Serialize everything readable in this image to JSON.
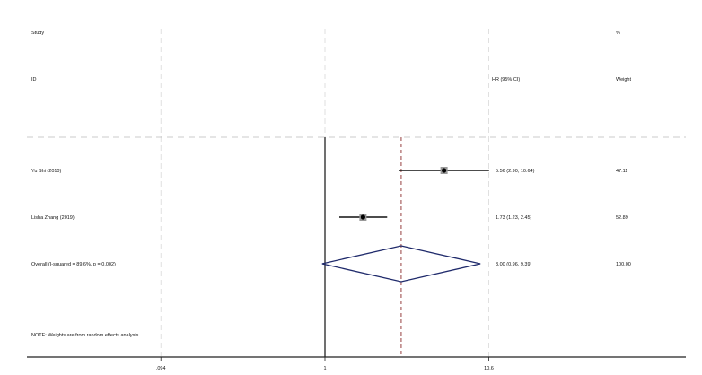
{
  "chart_data": {
    "type": "forest",
    "scale": "log",
    "headers": {
      "study": "Study",
      "id": "ID",
      "effect": "HR (95% CI)",
      "pct": "%",
      "weight": "Weight"
    },
    "studies": [
      {
        "label": "Yu Shi (2010)",
        "hr": 5.56,
        "lo": 2.9,
        "hi": 10.64,
        "text": "5.56 (2.90, 10.64)",
        "weight": "47.11"
      },
      {
        "label": "Lisha Zhang (2019)",
        "hr": 1.73,
        "lo": 1.23,
        "hi": 2.45,
        "text": "1.73 (1.23, 2.45)",
        "weight": "52.89"
      }
    ],
    "overall": {
      "label": "Overall  (I-squared = 89.6%, p = 0.002)",
      "hr": 3.0,
      "lo": 0.96,
      "hi": 9.39,
      "text": "3.00 (0.96, 9.39)",
      "weight": "100.00"
    },
    "note": "NOTE: Weights are from random effects analysis",
    "x_ticks": [
      {
        "value": 0.094,
        "label": ".094"
      },
      {
        "value": 1,
        "label": "1"
      },
      {
        "value": 10.6,
        "label": "10.6"
      }
    ],
    "colors": {
      "diamond": "#1f2a6b",
      "overall_line": "#8b2a2a",
      "grid": "#d8d8d8"
    }
  }
}
